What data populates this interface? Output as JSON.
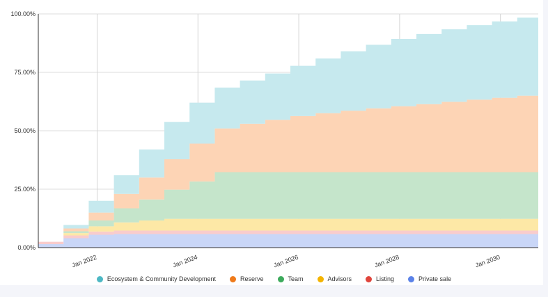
{
  "chart_data": {
    "type": "area",
    "stacked": true,
    "title": "",
    "xlabel": "",
    "ylabel": "",
    "x_ticks": [
      "Jan 2022",
      "Jan 2024",
      "Jan 2026",
      "Jan 2028",
      "Jan 2030"
    ],
    "y_ticks": [
      "0.00%",
      "25.00%",
      "50.00%",
      "75.00%",
      "100.00%"
    ],
    "ylim": [
      0,
      100
    ],
    "x": [
      "2020-11",
      "2021-05",
      "2021-11",
      "2022-05",
      "2022-11",
      "2023-05",
      "2023-11",
      "2024-05",
      "2024-11",
      "2025-05",
      "2025-11",
      "2026-05",
      "2026-11",
      "2027-05",
      "2027-11",
      "2028-05",
      "2028-11",
      "2029-05",
      "2029-11",
      "2030-05",
      "2030-10"
    ],
    "series": [
      {
        "name": "Private sale",
        "color": "#c9d6f7",
        "values": [
          1.5,
          4,
          5.5,
          5.8,
          5.8,
          5.8,
          5.8,
          5.8,
          5.8,
          5.8,
          5.8,
          5.8,
          5.8,
          5.8,
          5.8,
          5.8,
          5.8,
          5.8,
          5.8,
          5.8,
          5.8
        ]
      },
      {
        "name": "Listing",
        "color": "#f9cccc",
        "values": [
          1,
          1.2,
          1.4,
          1.5,
          1.5,
          1.5,
          1.5,
          1.5,
          1.5,
          1.5,
          1.5,
          1.5,
          1.5,
          1.5,
          1.5,
          1.5,
          1.5,
          1.5,
          1.5,
          1.5,
          1.5
        ]
      },
      {
        "name": "Advisors",
        "color": "#fde8a6",
        "values": [
          0,
          1,
          2.2,
          3.5,
          4.3,
          5,
          5,
          5,
          5,
          5,
          5,
          5,
          5,
          5,
          5,
          5,
          5,
          5,
          5,
          5,
          5
        ]
      },
      {
        "name": "Team",
        "color": "#c5e5cb",
        "values": [
          0,
          0.8,
          2.5,
          6,
          9,
          12.5,
          16,
          20,
          20,
          20,
          20,
          20,
          20,
          20,
          20,
          20,
          20,
          20,
          20,
          20,
          20
        ]
      },
      {
        "name": "Reserve",
        "color": "#fdd4b5",
        "values": [
          0,
          1.2,
          3.4,
          6.2,
          9.4,
          13,
          16.2,
          18.7,
          20.7,
          22.4,
          24,
          25.2,
          26.3,
          27.3,
          28.2,
          29.1,
          30.1,
          31,
          31.8,
          32.7,
          33.5
        ]
      },
      {
        "name": "Ecosystem & Community Development",
        "color": "#c6e9ee",
        "values": [
          0,
          1.5,
          5,
          8,
          12,
          16,
          17.5,
          17.5,
          18.5,
          19.8,
          21.5,
          23.4,
          25.4,
          27.2,
          28.8,
          30,
          31,
          31.9,
          32.7,
          33.4,
          34.2
        ]
      }
    ],
    "legend_order": [
      "Ecosystem & Community Development",
      "Reserve",
      "Team",
      "Advisors",
      "Listing",
      "Private sale"
    ],
    "legend_colors": {
      "Ecosystem & Community Development": "#4db8c4",
      "Reserve": "#ef7a1a",
      "Team": "#3daa5c",
      "Advisors": "#f4b400",
      "Listing": "#e0453c",
      "Private sale": "#5b82e8"
    },
    "grid": true,
    "legend_position": "bottom"
  }
}
